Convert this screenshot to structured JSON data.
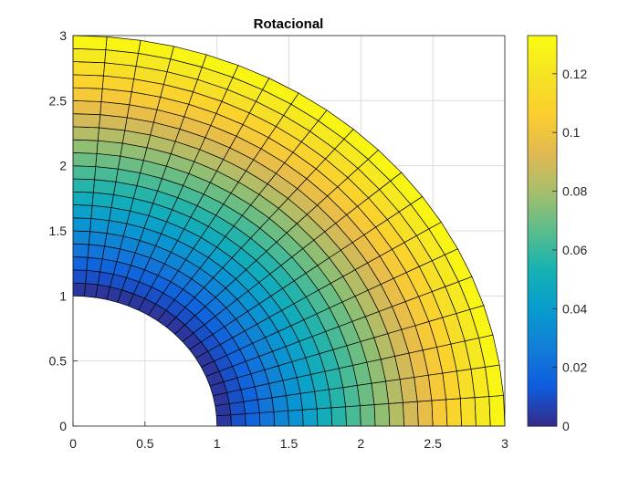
{
  "chart_data": {
    "type": "heatmap",
    "title": "Rotacional",
    "xlabel": "",
    "ylabel": "",
    "xlim": [
      0,
      3
    ],
    "ylim": [
      0,
      3
    ],
    "x_ticks": [
      0,
      0.5,
      1,
      1.5,
      2,
      2.5,
      3
    ],
    "y_ticks": [
      0,
      0.5,
      1,
      1.5,
      2,
      2.5,
      3
    ],
    "x_tick_labels": [
      "0",
      "0.5",
      "1",
      "1.5",
      "2",
      "2.5",
      "3"
    ],
    "y_tick_labels": [
      "0",
      "0.5",
      "1",
      "1.5",
      "2",
      "2.5",
      "3"
    ],
    "grid": true,
    "domain": {
      "shape": "quarter annulus",
      "r_inner": 1,
      "r_outer": 3,
      "theta_range_deg": [
        0,
        90
      ],
      "radial_divisions": 20,
      "angular_divisions": 20
    },
    "field": {
      "description": "value increases from inner radius to outer radius",
      "min": 0,
      "max": 0.133
    },
    "colorbar": {
      "colormap": "parula",
      "range": [
        0,
        0.133
      ],
      "ticks": [
        0,
        0.02,
        0.04,
        0.06,
        0.08,
        0.1,
        0.12
      ],
      "tick_labels": [
        "0",
        "0.02",
        "0.04",
        "0.06",
        "0.08",
        "0.1",
        "0.12"
      ],
      "placement": "right"
    }
  }
}
